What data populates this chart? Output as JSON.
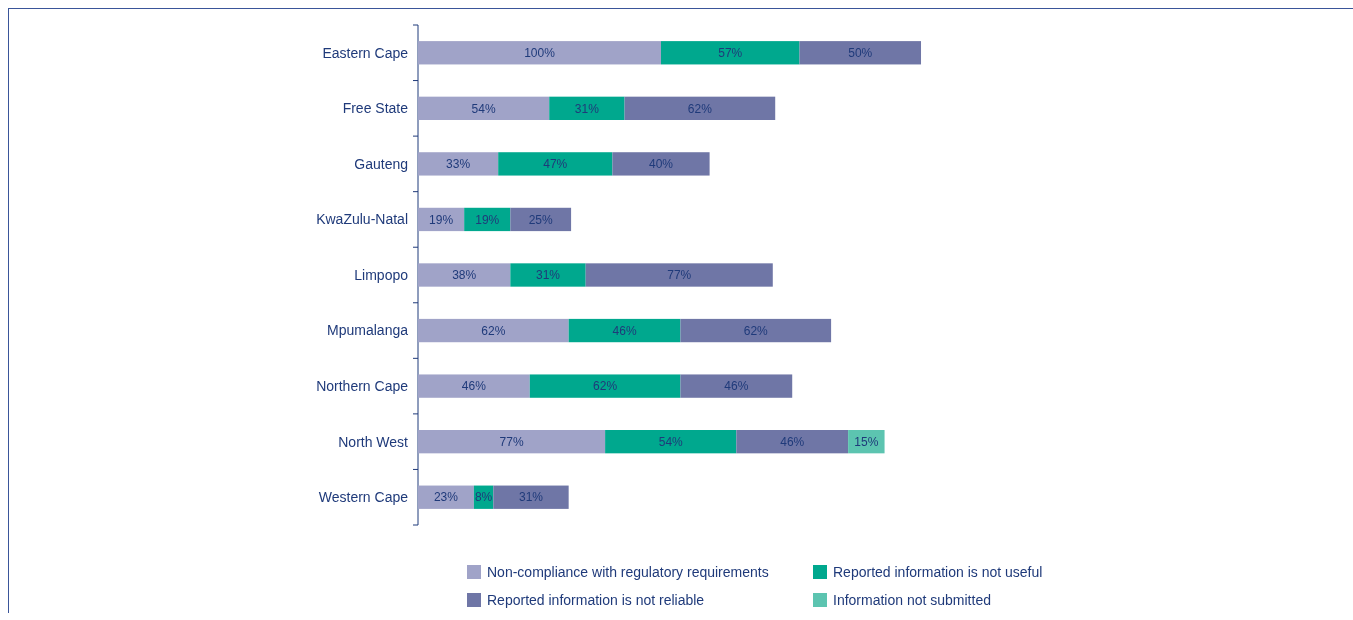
{
  "chart_data": {
    "type": "bar",
    "orientation": "horizontal",
    "stacked": true,
    "legend": "bottom",
    "categories": [
      "Eastern Cape",
      "Free State",
      "Gauteng",
      "KwaZulu-Natal",
      "Limpopo",
      "Mpumalanga",
      "Northern Cape",
      "North West",
      "Western Cape"
    ],
    "series": [
      {
        "name": "Non-compliance with regulatory requirements",
        "color": "#a0a3c8",
        "values": [
          100,
          54,
          33,
          19,
          38,
          62,
          46,
          77,
          23
        ],
        "value_labels": [
          "100%",
          "54%",
          "33%",
          "19%",
          "38%",
          "62%",
          "46%",
          "77%",
          "23%"
        ]
      },
      {
        "name": "Reported information is not useful",
        "color": "#00a88e",
        "values": [
          57,
          31,
          47,
          19,
          31,
          46,
          62,
          54,
          8
        ],
        "value_labels": [
          "57%",
          "31%",
          "47%",
          "19%",
          "31%",
          "46%",
          "62%",
          "54%",
          "8%"
        ]
      },
      {
        "name": "Reported information is not reliable",
        "color": "#6f76a6",
        "values": [
          50,
          62,
          40,
          25,
          77,
          62,
          46,
          46,
          31
        ],
        "value_labels": [
          "50%",
          "62%",
          "40%",
          "25%",
          "77%",
          "62%",
          "46%",
          "46%",
          "31%"
        ]
      },
      {
        "name": "Information not submitted",
        "color": "#5cc4b0",
        "values": [
          null,
          null,
          null,
          null,
          null,
          null,
          null,
          15,
          null
        ],
        "value_labels": [
          null,
          null,
          null,
          null,
          null,
          null,
          null,
          "15%",
          null
        ]
      }
    ]
  }
}
